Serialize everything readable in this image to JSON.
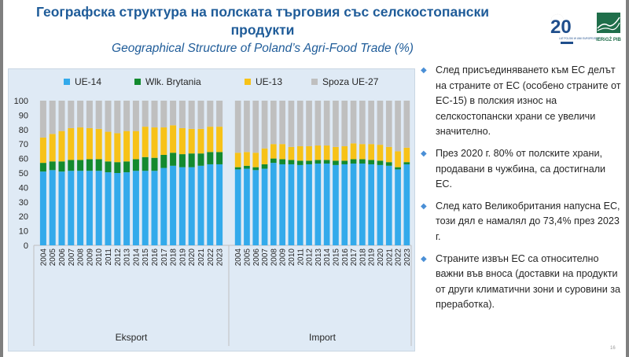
{
  "slide": {
    "title": "Географска структура на полската търговия със селскостопански продукти",
    "subtitle": "Geographical Structure of Poland’s Agri-Food Trade (%)",
    "page_number": "16"
  },
  "logos": {
    "left_logo_text": "LAT POLSKI W UNII EUROPEJSKIEJ",
    "left_logo_number": "20",
    "right_logo_text": "IERiGŻ PIB"
  },
  "bullets": [
    "След присъединяването към ЕС делът на страните от ЕС (особено страните от ЕС-15) в полския износ на селскостопански храни се увеличи значително.",
    "През 2020 г. 80% от полските храни, продавани в чужбина, са достигнали ЕС.",
    "След като Великобритания напусна ЕС, този дял е намалял до 73,4% през 2023 г.",
    "Страните извън ЕС са относително важни във вноса (доставки на продукти от други климатични зони и суровини за преработка)."
  ],
  "colors": {
    "UE-14": "#33aaeb",
    "Wlk. Brytania": "#138a2e",
    "UE-13": "#f7c218",
    "Spoza UE-27": "#bfbfbf",
    "accent": "#1f5c99"
  },
  "chart_data": {
    "type": "bar",
    "stacked": true,
    "ylim": [
      0,
      100
    ],
    "yticks": [
      0,
      10,
      20,
      30,
      40,
      50,
      60,
      70,
      80,
      90,
      100
    ],
    "legend_position": "top",
    "years": [
      "2004",
      "2005",
      "2006",
      "2007",
      "2008",
      "2009",
      "2010",
      "2011",
      "2012",
      "2013",
      "2014",
      "2015",
      "2016",
      "2017",
      "2018",
      "2019",
      "2020",
      "2021",
      "2022",
      "2023"
    ],
    "groups": [
      {
        "label": "Eksport",
        "series": [
          {
            "name": "UE-14",
            "values": [
              51,
              52,
              51,
              51.5,
              51.5,
              51.5,
              51.5,
              50.5,
              50,
              50.5,
              51.5,
              51.5,
              51.5,
              53.5,
              55,
              54,
              54,
              55,
              56,
              56
            ]
          },
          {
            "name": "Wlk. Brytania",
            "values": [
              6,
              6,
              7,
              7.5,
              7.5,
              8,
              8,
              7.5,
              7.5,
              7.5,
              8,
              9.5,
              9,
              9,
              9,
              9,
              9.5,
              8.5,
              8.5,
              8.5
            ]
          },
          {
            "name": "UE-13",
            "values": [
              17.5,
              19,
              21,
              22,
              22.5,
              21.5,
              21,
              20.5,
              20,
              21,
              19.5,
              21,
              21,
              19,
              19,
              18,
              17,
              17,
              17.5,
              17.5
            ]
          },
          {
            "name": "Spoza UE-27",
            "values": [
              25.5,
              23,
              21,
              19,
              18.5,
              19,
              19.5,
              21.5,
              22.5,
              21,
              21,
              18,
              18.5,
              18.5,
              17,
              19,
              19.5,
              19.5,
              18,
              18
            ]
          }
        ]
      },
      {
        "label": "Import",
        "series": [
          {
            "name": "UE-14",
            "values": [
              52.5,
              53,
              52,
              53,
              57,
              56,
              56,
              55.5,
              56,
              56.5,
              56.5,
              55.5,
              56,
              56.5,
              56.5,
              56,
              55.5,
              55,
              52.5,
              56
            ]
          },
          {
            "name": "Wlk. Brytania",
            "values": [
              1.5,
              2,
              2,
              3,
              3,
              3.5,
              3,
              3,
              2.5,
              2.5,
              2.5,
              3,
              2.5,
              3,
              3,
              3,
              3,
              2.5,
              1.5,
              1.5
            ]
          },
          {
            "name": "UE-13",
            "values": [
              10,
              9.5,
              10,
              11,
              10,
              10.5,
              9,
              10,
              10,
              10,
              10,
              9.5,
              10,
              11,
              10.5,
              11,
              11,
              10.5,
              11,
              10
            ]
          },
          {
            "name": "Spoza UE-27",
            "values": [
              36,
              35.5,
              36,
              33,
              30,
              30,
              32,
              31.5,
              31.5,
              31,
              31,
              32,
              31.5,
              29.5,
              30,
              30,
              30.5,
              32,
              35,
              32.5
            ]
          }
        ]
      }
    ]
  }
}
